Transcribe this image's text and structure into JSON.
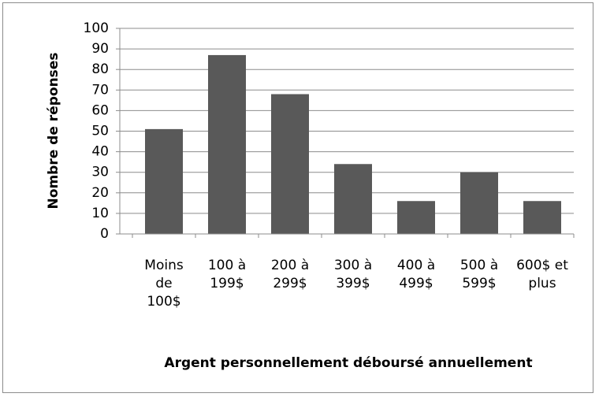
{
  "chart_data": {
    "type": "bar",
    "xlabel": "Argent personnellement déboursé annuellement",
    "ylabel": "Nombre de réponses",
    "categories": [
      "Moins de 100$",
      "100 à 199$",
      "200 à 299$",
      "300 à 399$",
      "400 à 499$",
      "500 à 599$",
      "600$ et plus"
    ],
    "values": [
      51,
      87,
      68,
      34,
      16,
      30,
      16
    ],
    "color": "#595959",
    "ylim": [
      0,
      100
    ],
    "yticks": [
      0,
      10,
      20,
      30,
      40,
      50,
      60,
      70,
      80,
      90,
      100
    ],
    "grid": true
  }
}
